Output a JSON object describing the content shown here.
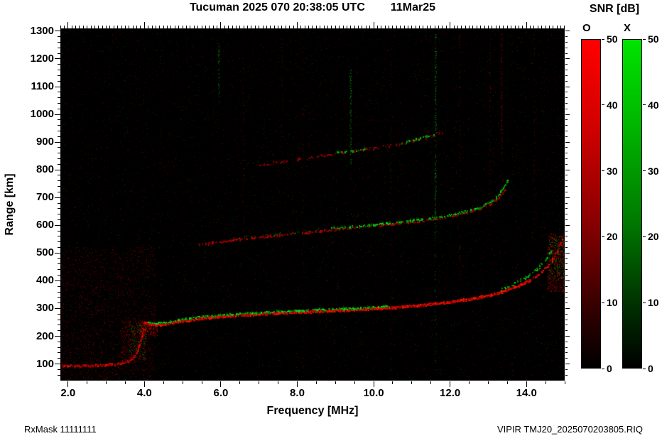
{
  "title": {
    "station_time": "Tucuman 2025 070 20:38:05 UTC",
    "date": "11Mar25"
  },
  "axes": {
    "x_label": "Frequency [MHz]",
    "y_label": "Range [km]",
    "x_ticks": [
      {
        "v": 2,
        "label": "2.0"
      },
      {
        "v": 4,
        "label": "4.0"
      },
      {
        "v": 6,
        "label": "6.0"
      },
      {
        "v": 8,
        "label": "8.0"
      },
      {
        "v": 10,
        "label": "10.0"
      },
      {
        "v": 12,
        "label": "12.0"
      },
      {
        "v": 14,
        "label": "14.0"
      }
    ],
    "y_ticks": [
      {
        "v": 100,
        "label": "100"
      },
      {
        "v": 200,
        "label": "200"
      },
      {
        "v": 300,
        "label": "300"
      },
      {
        "v": 400,
        "label": "400"
      },
      {
        "v": 500,
        "label": "500"
      },
      {
        "v": 600,
        "label": "600"
      },
      {
        "v": 700,
        "label": "700"
      },
      {
        "v": 800,
        "label": "800"
      },
      {
        "v": 900,
        "label": "900"
      },
      {
        "v": 1000,
        "label": "1000"
      },
      {
        "v": 1100,
        "label": "1100"
      },
      {
        "v": 1200,
        "label": "1200"
      },
      {
        "v": 1300,
        "label": "1300"
      }
    ]
  },
  "colorbar": {
    "title": "SNR [dB]",
    "min": 0,
    "max": 50,
    "ticks": [
      0,
      10,
      20,
      30,
      40,
      50
    ],
    "bars": [
      {
        "label": "O",
        "color": "#ff0000"
      },
      {
        "label": "X",
        "color": "#00e300"
      }
    ]
  },
  "footer": {
    "left": "RxMask 11111111",
    "right": "VIPIR  TMJ20_2025070203805.RIQ"
  },
  "chart_data": {
    "type": "heatmap",
    "title": "Tucuman 2025 070 20:38:05 UTC 11Mar25",
    "xlabel": "Frequency [MHz]",
    "ylabel": "Range [km]",
    "freq_range": [
      1.8,
      15.0
    ],
    "range_km": [
      40,
      1310
    ],
    "snr_db_range": [
      0,
      50
    ],
    "modes": {
      "O": "red",
      "X": "green"
    },
    "background_color": "#000000",
    "traces": [
      {
        "name": "E-region O-mode",
        "mode": "O",
        "size": 2,
        "density": 1.5,
        "jitter": 3,
        "v": [
          110,
          230
        ],
        "pts": [
          [
            1.85,
            93
          ],
          [
            2.4,
            94
          ],
          [
            2.9,
            96
          ],
          [
            3.2,
            99
          ],
          [
            3.45,
            104
          ],
          [
            3.6,
            112
          ],
          [
            3.72,
            124
          ],
          [
            3.8,
            140
          ],
          [
            3.86,
            165
          ],
          [
            3.92,
            195
          ],
          [
            3.97,
            225
          ]
        ]
      },
      {
        "name": "F 1-hop O-mode main",
        "mode": "O",
        "size": 2,
        "density": 2.3,
        "jitter": 3,
        "v": [
          150,
          255
        ],
        "pts": [
          [
            3.98,
            252
          ],
          [
            4.15,
            243
          ],
          [
            4.35,
            241
          ],
          [
            4.6,
            246
          ],
          [
            5.0,
            256
          ],
          [
            5.5,
            265
          ],
          [
            6.0,
            271
          ],
          [
            6.5,
            276
          ],
          [
            7.0,
            280
          ],
          [
            7.5,
            284
          ],
          [
            8.0,
            287
          ],
          [
            8.5,
            290
          ],
          [
            9.0,
            293
          ],
          [
            9.5,
            296
          ],
          [
            10.0,
            300
          ],
          [
            10.5,
            304
          ],
          [
            11.0,
            309
          ],
          [
            11.5,
            316
          ],
          [
            12.0,
            324
          ],
          [
            12.5,
            334
          ],
          [
            13.0,
            347
          ],
          [
            13.4,
            362
          ],
          [
            13.8,
            383
          ],
          [
            14.1,
            403
          ]
        ]
      },
      {
        "name": "F 1-hop O-mode asymptote",
        "mode": "O",
        "size": 2,
        "density": 0.6,
        "jitter": 5,
        "v": [
          120,
          240
        ],
        "pts": [
          [
            14.1,
            403
          ],
          [
            14.4,
            432
          ],
          [
            14.6,
            462
          ],
          [
            14.75,
            494
          ],
          [
            14.85,
            522
          ],
          [
            14.93,
            550
          ]
        ]
      },
      {
        "name": "F 1-hop X-mode",
        "mode": "X",
        "size": 2,
        "density": 0.85,
        "jitter": 2,
        "v": [
          110,
          235
        ],
        "pts": [
          [
            4.1,
            250
          ],
          [
            4.3,
            247
          ],
          [
            4.6,
            252
          ],
          [
            5.0,
            262
          ],
          [
            5.5,
            271
          ],
          [
            6.0,
            277
          ],
          [
            6.5,
            282
          ],
          [
            7.0,
            286
          ],
          [
            7.5,
            290
          ],
          [
            8.0,
            293
          ],
          [
            8.5,
            296
          ],
          [
            9.0,
            299
          ],
          [
            9.5,
            302
          ],
          [
            10.0,
            306
          ],
          [
            10.4,
            310
          ]
        ]
      },
      {
        "name": "F 1-hop X-mode asymptote",
        "mode": "X",
        "size": 2,
        "density": 0.5,
        "jitter": 4,
        "v": [
          100,
          220
        ],
        "pts": [
          [
            13.3,
            365
          ],
          [
            13.7,
            392
          ],
          [
            14.0,
            414
          ],
          [
            14.25,
            440
          ],
          [
            14.45,
            470
          ],
          [
            14.6,
            497
          ],
          [
            14.7,
            522
          ]
        ]
      },
      {
        "name": "F 2-hop O-mode",
        "mode": "O",
        "size": 2,
        "density": 0.8,
        "jitter": 3,
        "v": [
          80,
          190
        ],
        "pts": [
          [
            5.4,
            530
          ],
          [
            5.9,
            539
          ],
          [
            6.4,
            548
          ],
          [
            6.9,
            556
          ],
          [
            7.4,
            563
          ],
          [
            7.9,
            570
          ],
          [
            8.4,
            577
          ],
          [
            8.9,
            584
          ],
          [
            9.4,
            591
          ],
          [
            9.9,
            598
          ],
          [
            10.4,
            604
          ],
          [
            10.9,
            611
          ],
          [
            11.4,
            620
          ],
          [
            11.9,
            631
          ],
          [
            12.4,
            645
          ],
          [
            12.8,
            661
          ],
          [
            13.1,
            681
          ],
          [
            13.3,
            703
          ],
          [
            13.45,
            732
          ]
        ]
      },
      {
        "name": "F 2-hop X-mode",
        "mode": "X",
        "size": 2,
        "density": 0.75,
        "jitter": 3,
        "v": [
          100,
          225
        ],
        "pts": [
          [
            8.9,
            590
          ],
          [
            9.4,
            596
          ],
          [
            9.9,
            602
          ],
          [
            10.4,
            608
          ],
          [
            10.9,
            615
          ],
          [
            11.4,
            624
          ],
          [
            11.9,
            635
          ],
          [
            12.4,
            650
          ],
          [
            12.8,
            666
          ],
          [
            13.05,
            684
          ],
          [
            13.25,
            706
          ],
          [
            13.4,
            736
          ],
          [
            13.5,
            766
          ]
        ]
      },
      {
        "name": "F 2-hop X-mode left sparse",
        "mode": "X",
        "size": 1,
        "density": 0.3,
        "jitter": 3,
        "v": [
          70,
          150
        ],
        "pts": [
          [
            6.2,
            552
          ],
          [
            6.8,
            560
          ],
          [
            7.4,
            568
          ],
          [
            8.0,
            576
          ],
          [
            8.6,
            583
          ]
        ]
      },
      {
        "name": "F 3-hop O-mode",
        "mode": "O",
        "size": 2,
        "density": 0.45,
        "jitter": 4,
        "v": [
          70,
          170
        ],
        "pts": [
          [
            7.0,
            818
          ],
          [
            7.6,
            830
          ],
          [
            8.2,
            842
          ],
          [
            8.8,
            854
          ],
          [
            9.4,
            866
          ],
          [
            10.0,
            878
          ],
          [
            10.6,
            893
          ],
          [
            11.1,
            908
          ],
          [
            11.5,
            922
          ],
          [
            11.8,
            938
          ]
        ]
      },
      {
        "name": "F 3-hop X-mode a",
        "mode": "X",
        "size": 2,
        "density": 0.5,
        "jitter": 3,
        "v": [
          90,
          200
        ],
        "pts": [
          [
            9.0,
            860
          ],
          [
            9.4,
            868
          ],
          [
            9.8,
            876
          ]
        ]
      },
      {
        "name": "F 3-hop X-mode b",
        "mode": "X",
        "size": 2,
        "density": 0.5,
        "jitter": 3,
        "v": [
          90,
          200
        ],
        "pts": [
          [
            10.7,
            896
          ],
          [
            11.0,
            906
          ],
          [
            11.3,
            917
          ],
          [
            11.6,
            931
          ]
        ]
      }
    ],
    "diffuse_regions": [
      {
        "name": "low-freq spread",
        "mode": "O",
        "f": [
          1.8,
          4.3
        ],
        "r": [
          40,
          520
        ],
        "count": 2400,
        "v": [
          22,
          110
        ]
      },
      {
        "name": "cusp spread red",
        "mode": "O",
        "f": [
          3.4,
          4.05
        ],
        "r": [
          110,
          255
        ],
        "count": 380,
        "v": [
          50,
          160
        ]
      },
      {
        "name": "cusp spread green",
        "mode": "X",
        "f": [
          3.6,
          4.05
        ],
        "r": [
          120,
          245
        ],
        "count": 150,
        "v": [
          45,
          150
        ]
      },
      {
        "name": "cusp patch red",
        "mode": "O",
        "f": [
          3.9,
          4.35
        ],
        "r": [
          200,
          250
        ],
        "count": 220,
        "v": [
          90,
          200
        ]
      },
      {
        "name": "right-edge spread",
        "mode": "O",
        "f": [
          14.55,
          15.0
        ],
        "r": [
          360,
          570
        ],
        "count": 650,
        "v": [
          60,
          170
        ]
      },
      {
        "name": "right-edge spread green",
        "mode": "X",
        "f": [
          14.6,
          15.0
        ],
        "r": [
          400,
          560
        ],
        "count": 180,
        "v": [
          50,
          150
        ]
      }
    ],
    "interference_columns": [
      {
        "f": 5.95,
        "r": [
          1040,
          1260
        ],
        "mode": "X",
        "count": 70,
        "v": [
          40,
          120
        ]
      },
      {
        "f": 9.4,
        "r": [
          820,
          1160
        ],
        "mode": "X",
        "count": 130,
        "v": [
          45,
          140
        ]
      },
      {
        "f": 11.62,
        "r": [
          560,
          1295
        ],
        "mode": "X",
        "count": 220,
        "v": [
          45,
          150
        ]
      },
      {
        "f": 11.62,
        "r": [
          60,
          560
        ],
        "mode": "X",
        "count": 50,
        "v": [
          35,
          100
        ]
      },
      {
        "f": 13.35,
        "r": [
          840,
          1290
        ],
        "mode": "O",
        "count": 160,
        "v": [
          40,
          130
        ]
      },
      {
        "f": 12.25,
        "r": [
          380,
          1290
        ],
        "mode": "O",
        "count": 100,
        "v": [
          35,
          110
        ]
      },
      {
        "f": 10.45,
        "r": [
          60,
          1290
        ],
        "mode": "O",
        "count": 90,
        "v": [
          30,
          100
        ]
      },
      {
        "f": 8.15,
        "r": [
          60,
          1290
        ],
        "mode": "O",
        "count": 80,
        "v": [
          30,
          100
        ]
      },
      {
        "f": 6.6,
        "r": [
          580,
          1220
        ],
        "mode": "O",
        "count": 60,
        "v": [
          30,
          95
        ]
      },
      {
        "f": 13.05,
        "r": [
          580,
          1290
        ],
        "mode": "O",
        "count": 90,
        "v": [
          35,
          110
        ]
      },
      {
        "f": 14.2,
        "r": [
          580,
          1290
        ],
        "mode": "O",
        "count": 70,
        "v": [
          35,
          110
        ]
      },
      {
        "f": 7.6,
        "r": [
          900,
          1290
        ],
        "mode": "O",
        "count": 55,
        "v": [
          30,
          95
        ]
      }
    ],
    "background_speckle": [
      {
        "mode": "O",
        "count": 9000,
        "v": [
          16,
          80
        ]
      },
      {
        "mode": "X",
        "count": 2400,
        "v": [
          14,
          65
        ]
      }
    ]
  }
}
